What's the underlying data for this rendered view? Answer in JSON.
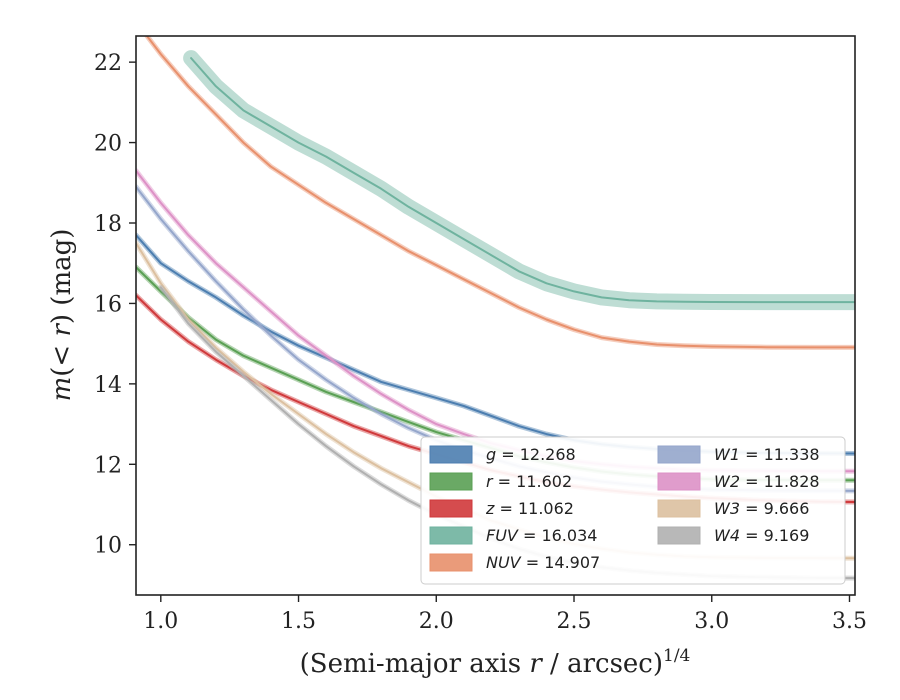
{
  "chart_data": {
    "type": "line",
    "title": "",
    "xlabel_prefix": "(Semi-major axis ",
    "xlabel_var": "r",
    "xlabel_unit": " / arcsec)",
    "xlabel_exp": "1/4",
    "ylabel_var_m": "m",
    "ylabel_inner": "(< ",
    "ylabel_var_r": "r",
    "ylabel_close": ")",
    "ylabel_unit": " (mag)",
    "xlim": [
      0.91,
      3.52
    ],
    "ylim": [
      22.65,
      8.75
    ],
    "y_inverted": true,
    "x_ticks": [
      "1.0",
      "1.5",
      "2.0",
      "2.5",
      "3.0",
      "3.5"
    ],
    "y_ticks": [
      "10",
      "12",
      "14",
      "16",
      "18",
      "20",
      "22"
    ],
    "grid": false,
    "legend_location": "lower-right",
    "series": [
      {
        "name": "g",
        "value": "12.268",
        "color": "#4c7eb0",
        "x": [
          0.91,
          1.0,
          1.1,
          1.2,
          1.3,
          1.4,
          1.5,
          1.6,
          1.7,
          1.8,
          1.9,
          2.0,
          2.1,
          2.2,
          2.3,
          2.4,
          2.5,
          2.6,
          2.7,
          2.8,
          2.9,
          3.0,
          3.2,
          3.4,
          3.52
        ],
        "y": [
          17.7,
          17.0,
          16.55,
          16.15,
          15.7,
          15.3,
          14.95,
          14.65,
          14.35,
          14.05,
          13.85,
          13.65,
          13.45,
          13.2,
          12.95,
          12.75,
          12.6,
          12.5,
          12.43,
          12.38,
          12.34,
          12.31,
          12.28,
          12.27,
          12.268
        ]
      },
      {
        "name": "r",
        "value": "11.602",
        "color": "#5aa054",
        "x": [
          0.91,
          1.0,
          1.1,
          1.2,
          1.3,
          1.4,
          1.5,
          1.6,
          1.7,
          1.8,
          1.9,
          2.0,
          2.1,
          2.2,
          2.3,
          2.4,
          2.5,
          2.6,
          2.7,
          2.8,
          2.9,
          3.0,
          3.2,
          3.4,
          3.52
        ],
        "y": [
          16.9,
          16.3,
          15.65,
          15.1,
          14.7,
          14.4,
          14.1,
          13.8,
          13.55,
          13.3,
          13.05,
          12.8,
          12.6,
          12.4,
          12.2,
          12.05,
          11.92,
          11.82,
          11.75,
          11.7,
          11.66,
          11.63,
          11.61,
          11.605,
          11.602
        ]
      },
      {
        "name": "z",
        "value": "11.062",
        "color": "#d0393b",
        "x": [
          0.91,
          1.0,
          1.1,
          1.2,
          1.3,
          1.4,
          1.5,
          1.6,
          1.7,
          1.8,
          1.9,
          2.0,
          2.1,
          2.2,
          2.3,
          2.4,
          2.5,
          2.6,
          2.7,
          2.8,
          2.9,
          3.0,
          3.2,
          3.4,
          3.52
        ],
        "y": [
          16.2,
          15.6,
          15.05,
          14.6,
          14.2,
          13.85,
          13.55,
          13.25,
          12.95,
          12.7,
          12.45,
          12.25,
          12.05,
          11.85,
          11.7,
          11.55,
          11.45,
          11.37,
          11.3,
          11.25,
          11.2,
          11.16,
          11.1,
          11.07,
          11.062
        ]
      },
      {
        "name": "FUV",
        "value": "16.034",
        "color": "#6fb39f",
        "x": [
          1.11,
          1.2,
          1.3,
          1.4,
          1.5,
          1.6,
          1.7,
          1.8,
          1.9,
          2.0,
          2.1,
          2.2,
          2.3,
          2.4,
          2.5,
          2.6,
          2.7,
          2.8,
          2.9,
          3.0,
          3.2,
          3.4,
          3.52
        ],
        "y": [
          22.1,
          21.4,
          20.8,
          20.4,
          20.0,
          19.65,
          19.25,
          18.85,
          18.4,
          18.0,
          17.6,
          17.2,
          16.8,
          16.5,
          16.3,
          16.15,
          16.08,
          16.05,
          16.04,
          16.035,
          16.034,
          16.034,
          16.034
        ]
      },
      {
        "name": "NUV",
        "value": "14.907",
        "color": "#e8906c",
        "x": [
          0.95,
          1.0,
          1.1,
          1.2,
          1.3,
          1.4,
          1.5,
          1.6,
          1.7,
          1.8,
          1.9,
          2.0,
          2.1,
          2.2,
          2.3,
          2.4,
          2.5,
          2.6,
          2.7,
          2.8,
          2.9,
          3.0,
          3.2,
          3.4,
          3.52
        ],
        "y": [
          22.65,
          22.2,
          21.4,
          20.7,
          20.0,
          19.4,
          18.95,
          18.5,
          18.1,
          17.7,
          17.3,
          16.95,
          16.6,
          16.25,
          15.9,
          15.6,
          15.35,
          15.15,
          15.05,
          14.98,
          14.95,
          14.93,
          14.912,
          14.908,
          14.907
        ]
      },
      {
        "name": "W1",
        "value": "11.338",
        "color": "#95a6cb",
        "x": [
          0.91,
          1.0,
          1.1,
          1.2,
          1.3,
          1.4,
          1.5,
          1.6,
          1.7,
          1.8,
          1.9,
          2.0,
          2.1,
          2.2,
          2.3,
          2.4,
          2.5,
          2.6,
          2.7,
          2.8,
          2.9,
          3.0,
          3.2,
          3.4,
          3.52
        ],
        "y": [
          18.9,
          18.1,
          17.3,
          16.55,
          15.85,
          15.2,
          14.6,
          14.1,
          13.65,
          13.25,
          12.9,
          12.6,
          12.35,
          12.15,
          11.95,
          11.8,
          11.67,
          11.57,
          11.5,
          11.44,
          11.4,
          11.37,
          11.35,
          11.34,
          11.338
        ]
      },
      {
        "name": "W2",
        "value": "11.828",
        "color": "#dd91c6",
        "x": [
          0.91,
          1.0,
          1.1,
          1.2,
          1.3,
          1.4,
          1.5,
          1.6,
          1.7,
          1.8,
          1.9,
          2.0,
          2.1,
          2.2,
          2.3,
          2.4,
          2.5,
          2.6,
          2.7,
          2.8,
          2.9,
          3.0,
          3.2,
          3.4,
          3.52
        ],
        "y": [
          19.3,
          18.5,
          17.7,
          17.0,
          16.4,
          15.8,
          15.2,
          14.7,
          14.2,
          13.75,
          13.35,
          13.0,
          12.75,
          12.52,
          12.35,
          12.2,
          12.08,
          12.0,
          11.94,
          11.9,
          11.87,
          11.85,
          11.835,
          11.83,
          11.828
        ]
      },
      {
        "name": "W3",
        "value": "9.666",
        "color": "#dcc0a0",
        "x": [
          0.91,
          1.0,
          1.1,
          1.2,
          1.3,
          1.4,
          1.5,
          1.6,
          1.7,
          1.8,
          1.9,
          2.0,
          2.1,
          2.2,
          2.3,
          2.4,
          2.5,
          2.6,
          2.7,
          2.8,
          2.9,
          3.0,
          3.2,
          3.4,
          3.52
        ],
        "y": [
          17.5,
          16.5,
          15.6,
          14.9,
          14.3,
          13.75,
          13.25,
          12.75,
          12.3,
          11.9,
          11.55,
          11.2,
          10.9,
          10.6,
          10.38,
          10.18,
          10.02,
          9.9,
          9.81,
          9.75,
          9.71,
          9.69,
          9.672,
          9.667,
          9.666
        ]
      },
      {
        "name": "W4",
        "value": "9.169",
        "color": "#b0b0b0",
        "x": [
          1.0,
          1.1,
          1.2,
          1.3,
          1.4,
          1.5,
          1.6,
          1.7,
          1.8,
          1.9,
          2.0,
          2.1,
          2.2,
          2.3,
          2.4,
          2.5,
          2.6,
          2.7,
          2.8,
          2.9,
          3.0,
          3.2,
          3.4,
          3.52
        ],
        "y": [
          16.4,
          15.5,
          14.8,
          14.2,
          13.6,
          13.0,
          12.45,
          11.95,
          11.5,
          11.1,
          10.75,
          10.45,
          10.15,
          9.9,
          9.7,
          9.55,
          9.44,
          9.36,
          9.3,
          9.26,
          9.22,
          9.19,
          9.172,
          9.169
        ]
      }
    ]
  }
}
